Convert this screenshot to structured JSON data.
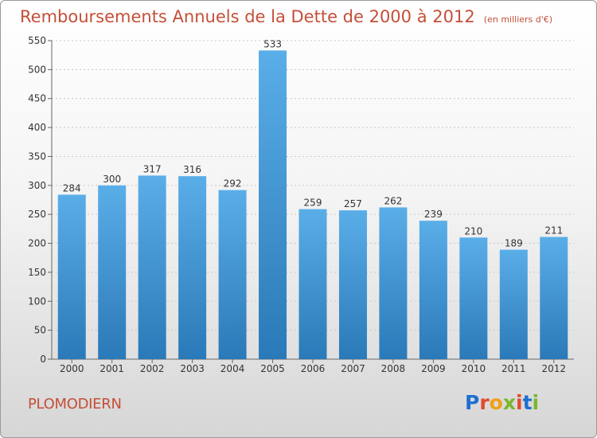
{
  "header": {
    "title": "Remboursements Annuels de la Dette de 2000 à 2012",
    "subtitle": "(en milliers d'€)"
  },
  "footer": {
    "commune": "PLOMODIERN",
    "logo_text": "Proxiti"
  },
  "colors": {
    "bar_top": "#5aaee8",
    "bar_bottom": "#2a79b8",
    "title": "#c44f38",
    "logo_letters": [
      "#1f6fd0",
      "#e24a2a",
      "#f0a016",
      "#7ab62a",
      "#e24a2a",
      "#1f6fd0",
      "#7ab62a"
    ]
  },
  "chart_data": {
    "type": "bar",
    "title": "Remboursements Annuels de la Dette de 2000 à 2012",
    "subtitle": "(en milliers d'€)",
    "categories": [
      "2000",
      "2001",
      "2002",
      "2003",
      "2004",
      "2005",
      "2006",
      "2007",
      "2008",
      "2009",
      "2010",
      "2011",
      "2012"
    ],
    "values": [
      284,
      300,
      317,
      316,
      292,
      533,
      259,
      257,
      262,
      239,
      210,
      189,
      211
    ],
    "ylim": [
      0,
      550
    ],
    "yticks": [
      0,
      50,
      100,
      150,
      200,
      250,
      300,
      350,
      400,
      450,
      500,
      550
    ],
    "grid": true
  }
}
